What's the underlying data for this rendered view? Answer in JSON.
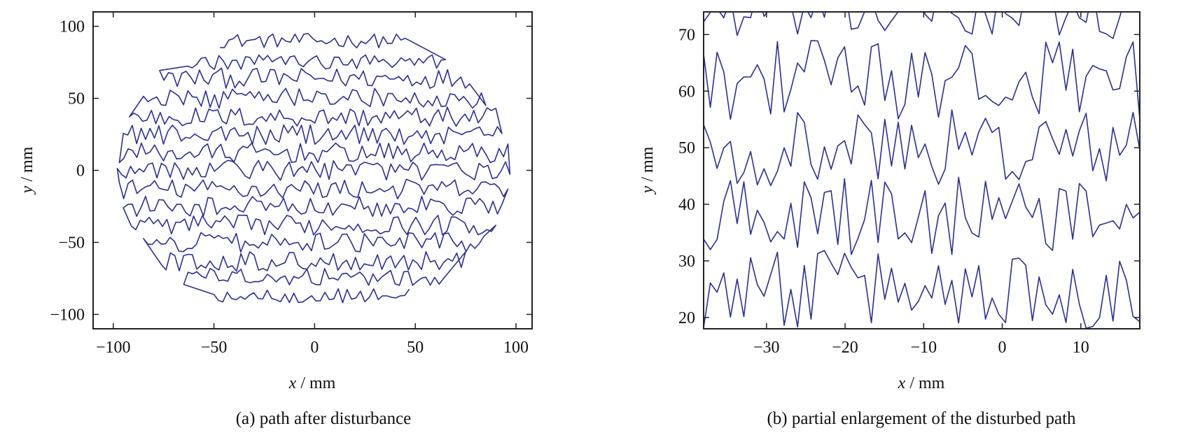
{
  "chart_data": [
    {
      "type": "line",
      "title": "",
      "caption": "(a) path after disturbance",
      "xlabel_var": "x",
      "xlabel_unit": " / mm",
      "ylabel_var": "y",
      "ylabel_unit": " / mm",
      "xlim": [
        -110,
        108
      ],
      "ylim": [
        -110,
        110
      ],
      "xticks": [
        -100,
        -50,
        0,
        50,
        100
      ],
      "xtick_labels": [
        "−100",
        "−50",
        "0",
        "50",
        "100"
      ],
      "yticks": [
        -100,
        -50,
        0,
        50,
        100
      ],
      "ytick_labels": [
        "−100",
        "−50",
        "0",
        "50",
        "100"
      ],
      "grid": false,
      "series": [
        {
          "description": "raster scan path over circular region of radius ~100 mm with random y-disturbance",
          "color": "#2b2f8f",
          "rows": [
            {
              "y": 90,
              "x_start": -47,
              "x_end": 45,
              "amplitude": 5
            },
            {
              "y": 75,
              "x_start": -63,
              "x_end": 65,
              "amplitude": 6
            },
            {
              "y": 64,
              "x_start": -77,
              "x_end": 77,
              "amplitude": 7
            },
            {
              "y": 50,
              "x_start": -85,
              "x_end": 85,
              "amplitude": 7
            },
            {
              "y": 37,
              "x_start": -92,
              "x_end": 90,
              "amplitude": 7
            },
            {
              "y": 25,
              "x_start": -95,
              "x_end": 93,
              "amplitude": 7
            },
            {
              "y": 12,
              "x_start": -97,
              "x_end": 96,
              "amplitude": 7
            },
            {
              "y": 0,
              "x_start": -98,
              "x_end": 97,
              "amplitude": 7
            },
            {
              "y": -13,
              "x_start": -97,
              "x_end": 96,
              "amplitude": 7
            },
            {
              "y": -25,
              "x_start": -95,
              "x_end": 93,
              "amplitude": 7
            },
            {
              "y": -38,
              "x_start": -91,
              "x_end": 90,
              "amplitude": 7
            },
            {
              "y": -50,
              "x_start": -85,
              "x_end": 84,
              "amplitude": 7
            },
            {
              "y": -63,
              "x_start": -76,
              "x_end": 75,
              "amplitude": 7
            },
            {
              "y": -74,
              "x_start": -65,
              "x_end": 64,
              "amplitude": 6
            },
            {
              "y": -87,
              "x_start": -50,
              "x_end": 47,
              "amplitude": 5
            }
          ]
        }
      ]
    },
    {
      "type": "line",
      "title": "",
      "caption": "(b) partial enlargement of the disturbed path",
      "xlabel_var": "x",
      "xlabel_unit": " / mm",
      "ylabel_var": "y",
      "ylabel_unit": " / mm",
      "xlim": [
        -38,
        17.5
      ],
      "ylim": [
        18,
        74
      ],
      "xticks": [
        -30,
        -20,
        -10,
        0,
        10
      ],
      "xtick_labels": [
        "−30",
        "−20",
        "−10",
        "0",
        "10"
      ],
      "yticks": [
        20,
        30,
        40,
        50,
        60,
        70
      ],
      "ytick_labels": [
        "20",
        "30",
        "40",
        "50",
        "60",
        "70"
      ],
      "grid": false,
      "series": [
        {
          "description": "zoomed section of disturbed raster path",
          "color": "#2b2f8f",
          "rows": [
            {
              "y": 74,
              "x_start": -38,
              "x_end": 17.5,
              "amplitude": 5
            },
            {
              "y": 62,
              "x_start": -38,
              "x_end": 17.5,
              "amplitude": 7
            },
            {
              "y": 50,
              "x_start": -38,
              "x_end": 17.5,
              "amplitude": 7
            },
            {
              "y": 38,
              "x_start": -38,
              "x_end": 17.5,
              "amplitude": 7
            },
            {
              "y": 25,
              "x_start": -38,
              "x_end": 17.5,
              "amplitude": 7
            }
          ]
        }
      ]
    }
  ]
}
